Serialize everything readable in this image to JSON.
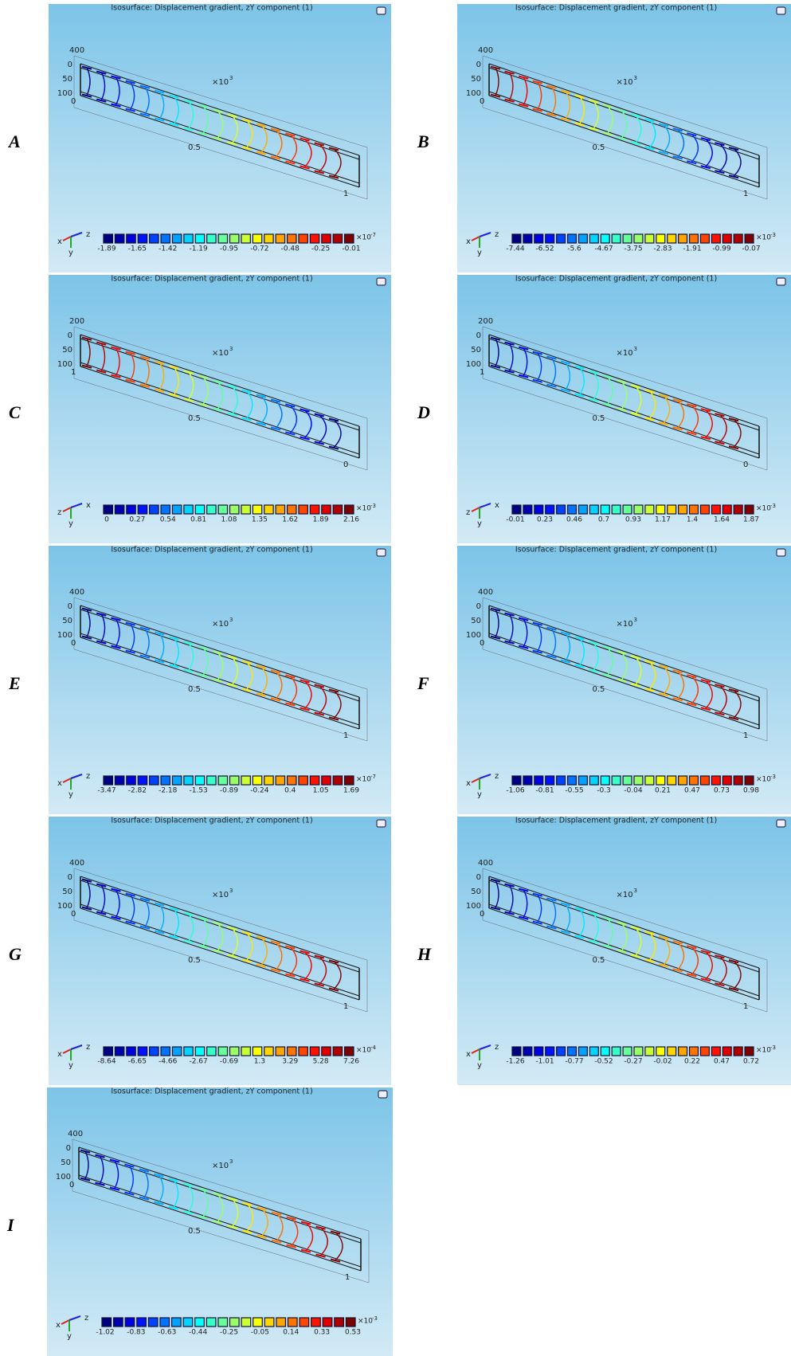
{
  "panels": [
    {
      "label": "A",
      "title": "Isosurface: Displacement gradient, zY component (1)",
      "axes": {
        "top": 400,
        "left": [
          0,
          50,
          100
        ],
        "left_end": 0,
        "scale": "×10",
        "scale_exp": 3,
        "mid": 0.5,
        "end": 1
      },
      "triad": [
        "x",
        "y",
        "z"
      ],
      "colorbar": {
        "ticks": [
          -1.89,
          -1.65,
          -1.42,
          -1.19,
          -0.95,
          -0.72,
          -0.48,
          -0.25,
          -0.01
        ],
        "multiplier": "×10",
        "exponent": -7
      }
    },
    {
      "label": "B",
      "title": "Isosurface: Displacement gradient, zY component (1)",
      "axes": {
        "top": 400,
        "left": [
          0,
          50,
          100
        ],
        "left_end": 0,
        "scale": "×10",
        "scale_exp": 3,
        "mid": 0.5,
        "end": 1
      },
      "triad": [
        "x",
        "y",
        "z"
      ],
      "colorbar": {
        "ticks": [
          -7.44,
          -6.52,
          -5.6,
          -4.67,
          -3.75,
          -2.83,
          -1.91,
          -0.99,
          -0.07
        ],
        "multiplier": "×10",
        "exponent": -3
      }
    },
    {
      "label": "C",
      "title": "Isosurface: Displacement gradient, zY component (1)",
      "axes": {
        "top": 200,
        "left": [
          0,
          50,
          100
        ],
        "left_end": 1,
        "scale": "×10",
        "scale_exp": 3,
        "mid": 0.5,
        "end": 0
      },
      "triad": [
        "z",
        "y",
        "x"
      ],
      "colorbar": {
        "ticks": [
          0,
          0.27,
          0.54,
          0.81,
          1.08,
          1.35,
          1.62,
          1.89,
          2.16
        ],
        "multiplier": "×10",
        "exponent": -3
      }
    },
    {
      "label": "D",
      "title": "Isosurface: Displacement gradient, zY component (1)",
      "axes": {
        "top": 200,
        "left": [
          0,
          50,
          100
        ],
        "left_end": 1,
        "scale": "×10",
        "scale_exp": 3,
        "mid": 0.5,
        "end": 0
      },
      "triad": [
        "z",
        "y",
        "x"
      ],
      "colorbar": {
        "ticks": [
          -0.01,
          0.23,
          0.46,
          0.7,
          0.93,
          1.17,
          1.4,
          1.64,
          1.87
        ],
        "multiplier": "×10",
        "exponent": -3
      }
    },
    {
      "label": "E",
      "title": "Isosurface: Displacement gradient, zY component (1)",
      "axes": {
        "top": 400,
        "left": [
          0,
          50,
          100
        ],
        "left_end": 0,
        "scale": "×10",
        "scale_exp": 3,
        "mid": 0.5,
        "end": 1
      },
      "triad": [
        "x",
        "y",
        "z"
      ],
      "colorbar": {
        "ticks": [
          -3.47,
          -2.82,
          -2.18,
          -1.53,
          -0.89,
          -0.24,
          0.4,
          1.05,
          1.69
        ],
        "multiplier": "×10",
        "exponent": -7
      }
    },
    {
      "label": "F",
      "title": "Isosurface: Displacement gradient, zY component (1)",
      "axes": {
        "top": 400,
        "left": [
          0,
          50,
          100
        ],
        "left_end": 0,
        "scale": "×10",
        "scale_exp": 3,
        "mid": 0.5,
        "end": 1
      },
      "triad": [
        "x",
        "y",
        "z"
      ],
      "colorbar": {
        "ticks": [
          -1.06,
          -0.81,
          -0.55,
          -0.3,
          -0.04,
          0.21,
          0.47,
          0.73,
          0.98
        ],
        "multiplier": "×10",
        "exponent": -3
      }
    },
    {
      "label": "G",
      "title": "Isosurface: Displacement gradient, zY component (1)",
      "axes": {
        "top": 400,
        "left": [
          0,
          50,
          100
        ],
        "left_end": 0,
        "scale": "×10",
        "scale_exp": 3,
        "mid": 0.5,
        "end": 1
      },
      "triad": [
        "x",
        "y",
        "z"
      ],
      "colorbar": {
        "ticks": [
          -8.64,
          -6.65,
          -4.66,
          -2.67,
          -0.69,
          1.3,
          3.29,
          5.28,
          7.26
        ],
        "multiplier": "×10",
        "exponent": -4
      }
    },
    {
      "label": "H",
      "title": "Isosurface: Displacement gradient, zY component (1)",
      "axes": {
        "top": 400,
        "left": [
          0,
          50,
          100
        ],
        "left_end": 0,
        "scale": "×10",
        "scale_exp": 3,
        "mid": 0.5,
        "end": 1
      },
      "triad": [
        "x",
        "y",
        "z"
      ],
      "colorbar": {
        "ticks": [
          -1.26,
          -1.01,
          -0.77,
          -0.52,
          -0.27,
          -0.02,
          0.22,
          0.47,
          0.72
        ],
        "multiplier": "×10",
        "exponent": -3
      }
    },
    {
      "label": "I",
      "title": "Isosurface: Displacement gradient, zY component (1)",
      "axes": {
        "top": 400,
        "left": [
          0,
          50,
          100
        ],
        "left_end": 0,
        "scale": "×10",
        "scale_exp": 3,
        "mid": 0.5,
        "end": 1
      },
      "triad": [
        "x",
        "y",
        "z"
      ],
      "colorbar": {
        "ticks": [
          -1.02,
          -0.83,
          -0.63,
          -0.44,
          -0.25,
          -0.05,
          0.14,
          0.33,
          0.53
        ],
        "multiplier": "×10",
        "exponent": -3
      }
    }
  ]
}
